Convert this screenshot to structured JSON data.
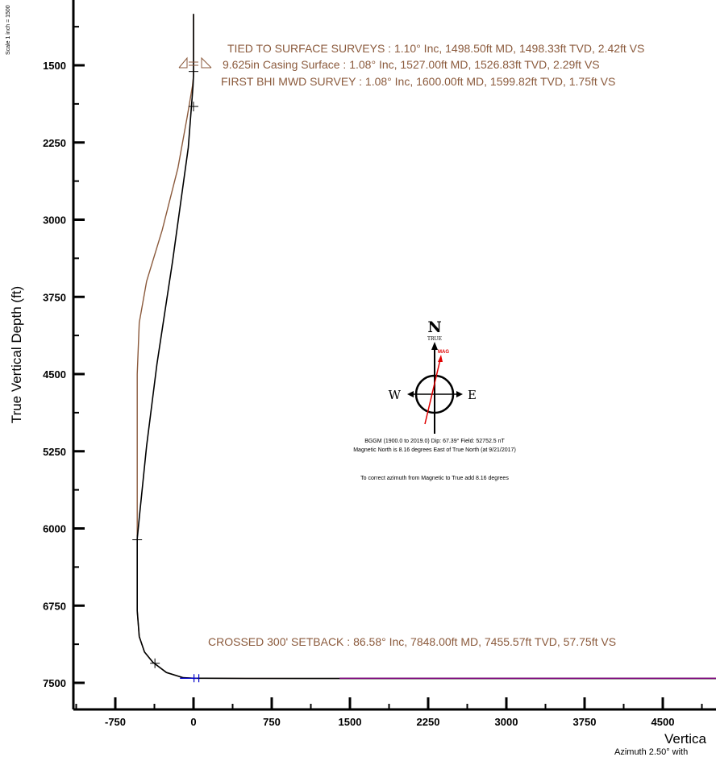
{
  "chart_data": {
    "type": "line",
    "ylabel": "True Vertical Depth (ft)",
    "xlabel": "Vertica",
    "x_sub_label": "Azimuth 2.50° with",
    "scale_label": "Scale 1 inch = 1500",
    "x_ticks": [
      -750,
      0,
      750,
      1500,
      2250,
      3000,
      3750,
      4500
    ],
    "y_ticks": [
      1500,
      2250,
      3000,
      3750,
      4500,
      5250,
      6000,
      6750,
      7500
    ],
    "series": [
      {
        "color": "#8B5A3C",
        "points": [
          [
            0,
            1000
          ],
          [
            0,
            1400
          ],
          [
            0,
            1500
          ],
          [
            0,
            1600
          ],
          [
            -10,
            1700
          ],
          [
            -60,
            2000
          ],
          [
            -150,
            2500
          ],
          [
            -300,
            3100
          ],
          [
            -450,
            3600
          ],
          [
            -520,
            4000
          ],
          [
            -540,
            4500
          ],
          [
            -540,
            5250
          ],
          [
            -540,
            6000
          ],
          [
            -540,
            6800
          ],
          [
            -520,
            7050
          ],
          [
            -470,
            7200
          ],
          [
            -390,
            7300
          ],
          [
            -260,
            7400
          ],
          [
            -100,
            7450
          ],
          [
            0,
            7455
          ],
          [
            500,
            7457
          ],
          [
            1500,
            7458
          ],
          [
            5200,
            7458
          ]
        ]
      },
      {
        "color": "#000000",
        "points": [
          [
            0,
            1000
          ],
          [
            0,
            1400
          ],
          [
            0,
            1500
          ],
          [
            0,
            1600
          ],
          [
            -5,
            1700
          ],
          [
            -50,
            2300
          ],
          [
            -200,
            3400
          ],
          [
            -350,
            4400
          ],
          [
            -450,
            5200
          ],
          [
            -520,
            5900
          ],
          [
            -540,
            6100
          ],
          [
            -540,
            6500
          ],
          [
            -540,
            6800
          ],
          [
            -520,
            7050
          ],
          [
            -470,
            7200
          ],
          [
            -390,
            7300
          ],
          [
            -260,
            7400
          ],
          [
            -100,
            7450
          ],
          [
            0,
            7455
          ],
          [
            500,
            7457
          ],
          [
            1500,
            7458
          ],
          [
            5200,
            7458
          ]
        ]
      },
      {
        "color": "#0000CC",
        "points": [
          [
            -130,
            7455
          ],
          [
            40,
            7455
          ]
        ]
      },
      {
        "color": "#800080",
        "points": [
          [
            1400,
            7455
          ],
          [
            5200,
            7455
          ]
        ]
      }
    ],
    "markers": [
      {
        "x": 0,
        "y": 1560
      },
      {
        "x": 0,
        "y": 1900
      },
      {
        "x": -540,
        "y": 6110
      },
      {
        "x": -370,
        "y": 7310
      }
    ],
    "annotations": [
      {
        "text": "TIED TO SURFACE SURVEYS : 1.10° Inc, 1498.50ft MD, 1498.33ft TVD, 2.42ft VS"
      },
      {
        "text": "9.625in Casing Surface : 1.08° Inc, 1527.00ft MD, 1526.83ft TVD, 2.29ft VS"
      },
      {
        "text": "FIRST BHI MWD SURVEY : 1.08° Inc, 1600.00ft MD, 1599.82ft TVD, 1.75ft VS"
      },
      {
        "text": "CROSSED 300' SETBACK : 86.58° Inc, 7848.00ft MD, 7455.57ft TVD, 57.75ft VS"
      }
    ],
    "compass": {
      "north": "N",
      "true_label": "TRUE",
      "mag_label": "MAG",
      "west": "W",
      "east": "E",
      "mag_color": "#E00000",
      "info_lines": [
        "BGGM (1900.0 to 2019.0) Dip: 67.39° Field: 52752.5 nT",
        "Magnetic North is 8.16 degrees East of True North (at 9/21/2017)",
        "To correct azimuth from Magnetic to True add 8.16 degrees"
      ]
    }
  }
}
